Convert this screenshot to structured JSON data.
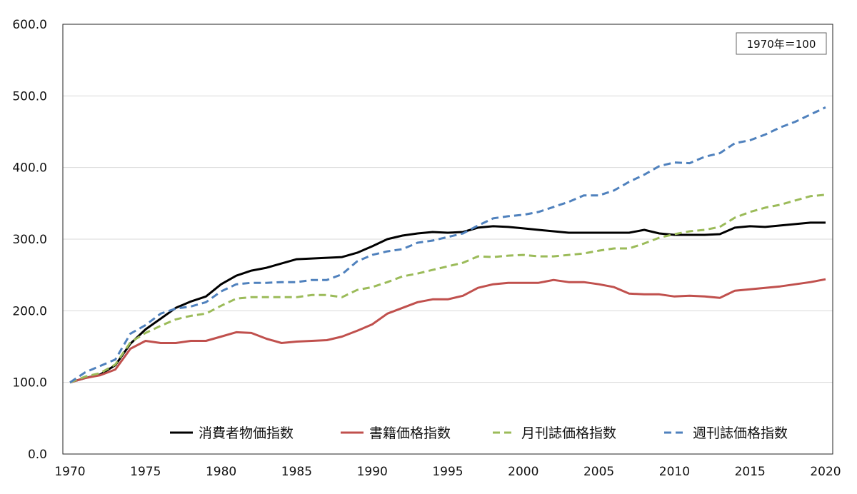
{
  "note": "1970年＝100",
  "chart_data": {
    "type": "line",
    "title": "",
    "xlabel": "",
    "ylabel": "",
    "xlim": [
      1970,
      2020
    ],
    "ylim": [
      0,
      600
    ],
    "grid": "horizontal",
    "legend_position": "bottom",
    "x_ticks": [
      "1970",
      "1975",
      "1980",
      "1985",
      "1990",
      "1995",
      "2000",
      "2005",
      "2010",
      "2015",
      "2020"
    ],
    "y_ticks": [
      "0.0",
      "100.0",
      "200.0",
      "300.0",
      "400.0",
      "500.0",
      "600.0"
    ],
    "x": [
      1970,
      1971,
      1972,
      1973,
      1974,
      1975,
      1976,
      1977,
      1978,
      1979,
      1980,
      1981,
      1982,
      1983,
      1984,
      1985,
      1986,
      1987,
      1988,
      1989,
      1990,
      1991,
      1992,
      1993,
      1994,
      1995,
      1996,
      1997,
      1998,
      1999,
      2000,
      2001,
      2002,
      2003,
      2004,
      2005,
      2006,
      2007,
      2008,
      2009,
      2010,
      2011,
      2012,
      2013,
      2014,
      2015,
      2016,
      2017,
      2018,
      2019,
      2020
    ],
    "series": [
      {
        "name": "消費者物価指数",
        "color": "#000000",
        "dash": "solid",
        "values": [
          100,
          106,
          111,
          124,
          154,
          174,
          189,
          204,
          213,
          220,
          237,
          249,
          256,
          260,
          266,
          272,
          273,
          274,
          275,
          281,
          290,
          300,
          305,
          308,
          310,
          309,
          310,
          316,
          318,
          317,
          315,
          313,
          311,
          309,
          309,
          309,
          309,
          309,
          313,
          308,
          306,
          306,
          306,
          307,
          316,
          318,
          317,
          319,
          321,
          323,
          323
        ]
      },
      {
        "name": "書籍価格指数",
        "color": "#C0504D",
        "dash": "solid",
        "values": [
          100,
          106,
          110,
          118,
          147,
          158,
          155,
          155,
          158,
          158,
          164,
          170,
          169,
          161,
          155,
          157,
          158,
          159,
          164,
          172,
          181,
          196,
          204,
          212,
          216,
          216,
          221,
          232,
          237,
          239,
          239,
          239,
          243,
          240,
          240,
          237,
          233,
          224,
          223,
          223,
          220,
          221,
          220,
          218,
          228,
          230,
          232,
          234,
          237,
          240,
          244
        ]
      },
      {
        "name": "月刊誌価格指数",
        "color": "#9BBB59",
        "dash": "dashed",
        "values": [
          100,
          108,
          113,
          125,
          156,
          169,
          179,
          188,
          193,
          196,
          207,
          217,
          219,
          219,
          219,
          219,
          222,
          222,
          219,
          229,
          233,
          240,
          248,
          252,
          257,
          262,
          267,
          276,
          275,
          277,
          278,
          276,
          276,
          278,
          280,
          284,
          287,
          287,
          294,
          302,
          307,
          311,
          313,
          317,
          330,
          338,
          344,
          348,
          354,
          360,
          362
        ]
      },
      {
        "name": "週刊誌価格指数",
        "color": "#4F81BD",
        "dash": "dashed",
        "values": [
          100,
          114,
          123,
          132,
          168,
          180,
          196,
          203,
          206,
          212,
          227,
          237,
          239,
          239,
          240,
          240,
          243,
          243,
          251,
          269,
          278,
          283,
          286,
          295,
          298,
          303,
          308,
          319,
          329,
          332,
          334,
          338,
          345,
          352,
          361,
          361,
          368,
          380,
          390,
          402,
          407,
          406,
          415,
          420,
          434,
          438,
          446,
          456,
          464,
          474,
          484
        ]
      }
    ]
  }
}
